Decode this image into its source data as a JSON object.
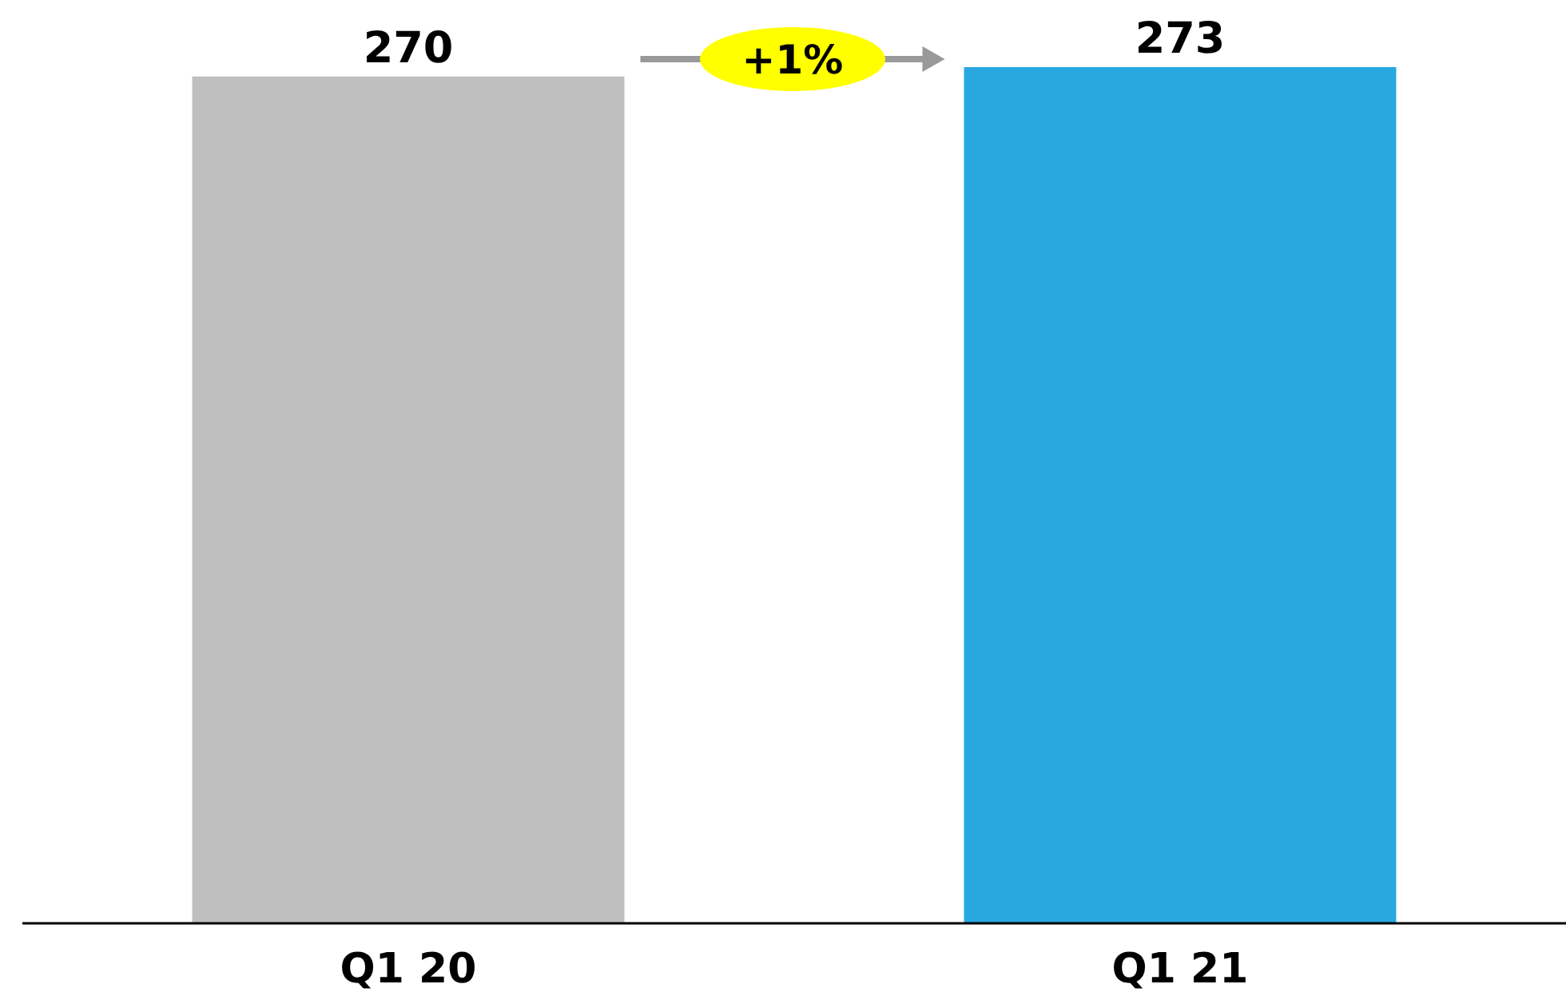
{
  "chart_data": {
    "type": "bar",
    "categories": [
      "Q1 20",
      "Q1 21"
    ],
    "values": [
      270,
      273
    ],
    "colors": [
      "#bfbfbf",
      "#29a8e0"
    ],
    "data_labels": true,
    "annotations": [
      "+1%"
    ]
  }
}
